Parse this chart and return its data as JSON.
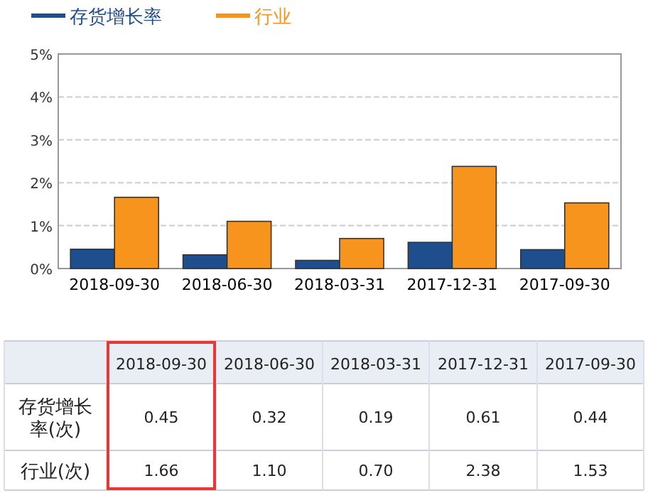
{
  "chart_data": {
    "type": "bar",
    "categories": [
      "2018-09-30",
      "2018-06-30",
      "2018-03-31",
      "2017-12-31",
      "2017-09-30"
    ],
    "series": [
      {
        "name": "存货增长率",
        "color": "#1f4e8f",
        "values": [
          0.45,
          0.32,
          0.19,
          0.61,
          0.44
        ],
        "value_labels": [
          "0.45",
          "0.32",
          "0.19",
          "0.61",
          "0.44"
        ]
      },
      {
        "name": "行业",
        "color": "#f7941d",
        "values": [
          1.66,
          1.1,
          0.7,
          2.38,
          1.53
        ],
        "value_labels": [
          "1.66",
          "1.10",
          "0.70",
          "2.38",
          "1.53"
        ]
      }
    ],
    "ylim": [
      0,
      5
    ],
    "yticks": [
      {
        "value": 0,
        "label": "0%"
      },
      {
        "value": 1,
        "label": "1%"
      },
      {
        "value": 2,
        "label": "2%"
      },
      {
        "value": 3,
        "label": "3%"
      },
      {
        "value": 4,
        "label": "4%"
      },
      {
        "value": 5,
        "label": "5%"
      }
    ],
    "grid": "y",
    "legend": "top left",
    "annotations": [
      "存货增长率(次)",
      "行业(次)"
    ]
  }
}
